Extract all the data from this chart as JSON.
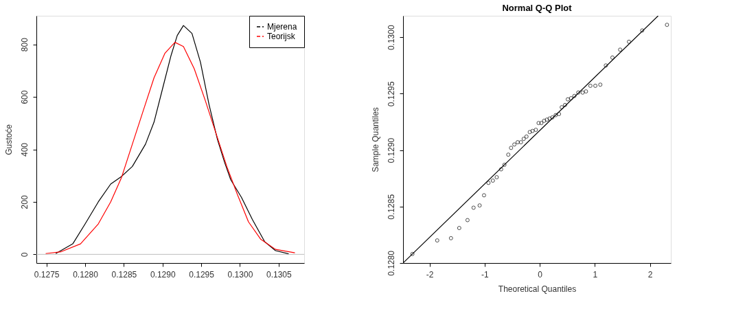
{
  "chart_data": [
    {
      "type": "line",
      "ylabel": "Gustoće",
      "legend": "top right",
      "grid": false,
      "line_style": "solid",
      "xlim": [
        0.12737,
        0.13083
      ],
      "ylim": [
        -33,
        909
      ],
      "xticks": [
        0.1275,
        {
          "value": 0.128,
          "label": "0.1280"
        },
        0.1285,
        {
          "value": 0.129,
          "label": "0.1290"
        },
        0.1295,
        {
          "value": 0.13,
          "label": "0.1300"
        },
        0.1305
      ],
      "yticks": [
        0,
        200,
        400,
        600,
        800
      ],
      "ref_lines": [
        {
          "axis": "y",
          "value": 0,
          "color": "#bebebe"
        }
      ],
      "series": [
        {
          "name": "Mjerena",
          "color": "#000000",
          "x": [
            0.12762,
            0.12784,
            0.128,
            0.12817,
            0.12833,
            0.12847,
            0.12861,
            0.12878,
            0.12889,
            0.129,
            0.12911,
            0.12919,
            0.12927,
            0.12938,
            0.12949,
            0.1296,
            0.12971,
            0.1298,
            0.12988,
            0.13002,
            0.13016,
            0.13032,
            0.13046,
            0.13063
          ],
          "values": [
            3,
            40,
            116,
            200,
            268,
            297,
            335,
            420,
            504,
            631,
            758,
            834,
            872,
            842,
            732,
            572,
            437,
            352,
            285,
            217,
            133,
            48,
            14,
            2
          ]
        },
        {
          "name": "Teorijsk",
          "color": "#ff0000",
          "x": [
            0.12749,
            0.12769,
            0.12794,
            0.12817,
            0.12833,
            0.12847,
            0.12861,
            0.12875,
            0.12889,
            0.12903,
            0.12916,
            0.12927,
            0.12941,
            0.12955,
            0.12969,
            0.12983,
            0.12997,
            0.13011,
            0.13027,
            0.13046,
            0.13071
          ],
          "values": [
            3,
            10,
            40,
            116,
            200,
            293,
            420,
            547,
            673,
            766,
            808,
            792,
            707,
            588,
            462,
            335,
            226,
            124,
            57,
            19,
            6
          ]
        }
      ]
    },
    {
      "type": "scatter",
      "title": "Normal Q-Q Plot",
      "xlabel": "Theoretical Quantiles",
      "ylabel": "Sample Quantiles",
      "legend": false,
      "grid": false,
      "marker": "circle",
      "xlim": [
        -2.48,
        2.38
      ],
      "ylim": [
        0.128,
        0.13019
      ],
      "xticks": [
        -2,
        -1,
        0,
        1,
        2
      ],
      "yticks": [
        {
          "value": 0.128,
          "label": "0.1280"
        },
        0.1285,
        {
          "value": 0.129,
          "label": "0.1290"
        },
        0.1295,
        {
          "value": 0.13,
          "label": "0.1300"
        }
      ],
      "series": [
        {
          "color": "#000000",
          "x": [
            -2.31,
            -1.86,
            -1.61,
            -1.46,
            -1.31,
            -1.2,
            -1.09,
            -1.01,
            -0.93,
            -0.85,
            -0.78,
            -0.7,
            -0.64,
            -0.57,
            -0.52,
            -0.46,
            -0.4,
            -0.34,
            -0.29,
            -0.24,
            -0.18,
            -0.13,
            -0.07,
            -0.02,
            0.03,
            0.08,
            0.13,
            0.18,
            0.23,
            0.29,
            0.35,
            0.4,
            0.46,
            0.51,
            0.57,
            0.63,
            0.7,
            0.78,
            0.84,
            0.92,
            1.01,
            1.1,
            1.2,
            1.32,
            1.46,
            1.62,
            1.86,
            2.31
          ],
          "values": [
            0.12808,
            0.1282,
            0.12822,
            0.12831,
            0.12838,
            0.12849,
            0.12851,
            0.1286,
            0.12871,
            0.12873,
            0.12876,
            0.12883,
            0.12887,
            0.12896,
            0.12902,
            0.12905,
            0.12907,
            0.12907,
            0.1291,
            0.12912,
            0.12916,
            0.12917,
            0.12918,
            0.12924,
            0.12924,
            0.12926,
            0.12927,
            0.12928,
            0.12929,
            0.12931,
            0.12932,
            0.12938,
            0.1294,
            0.12945,
            0.12946,
            0.12948,
            0.12951,
            0.12951,
            0.12952,
            0.12957,
            0.12957,
            0.12958,
            0.12975,
            0.12982,
            0.12989,
            0.12996,
            0.13006,
            0.13011
          ]
        },
        {
          "type": "line",
          "marker": "none",
          "color": "#000000",
          "x": [
            -2.48,
            2.15
          ],
          "values": [
            0.128,
            0.13019
          ]
        }
      ]
    }
  ]
}
